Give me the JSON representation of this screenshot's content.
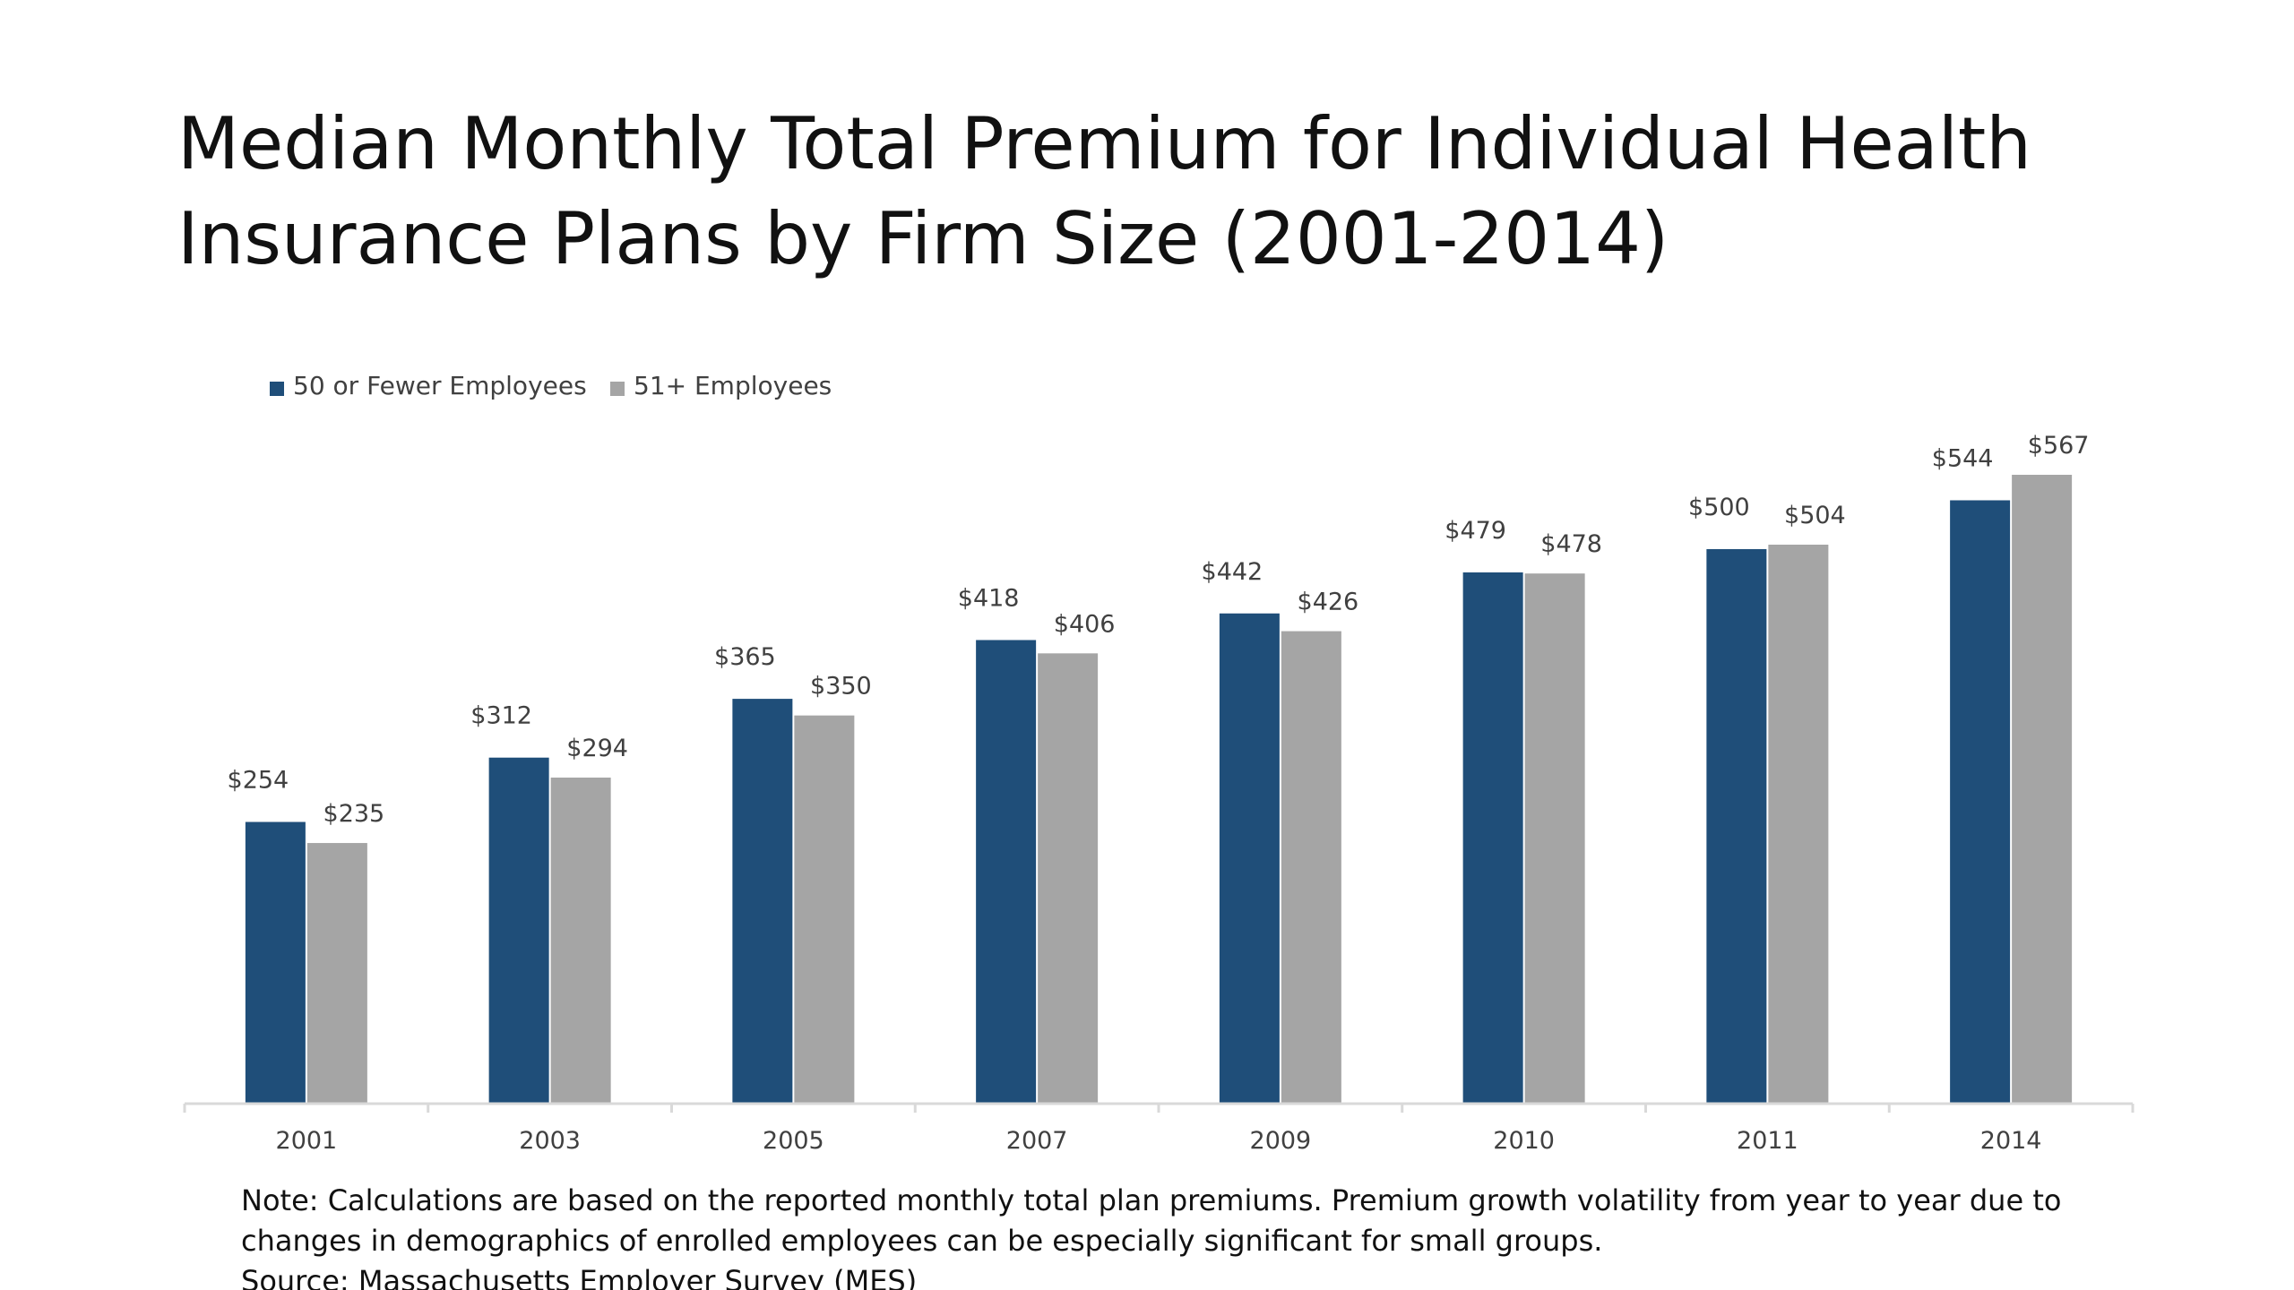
{
  "title_lines": [
    "Median Monthly Total Premium for Individual Health",
    "Insurance Plans by Firm Size (2001-2014)"
  ],
  "colors": {
    "series_small": "#1f4e79",
    "series_large": "#a5a5a5",
    "axis": "#d9d9d9",
    "text": "#111111",
    "label_text": "#404040"
  },
  "notes": {
    "line1": "Note: Calculations are based on the reported monthly total plan premiums.  Premium growth volatility from year to year due to",
    "line2": "changes in demographics of enrolled employees can be especially significant for small groups.",
    "source": "Source: Massachusetts Employer Survey (MES)"
  },
  "chart_data": {
    "type": "bar",
    "title": "Median Monthly Total Premium for Individual Health Insurance Plans by Firm Size (2001-2014)",
    "categories": [
      "2001",
      "2003",
      "2005",
      "2007",
      "2009",
      "2010",
      "2011",
      "2014"
    ],
    "series": [
      {
        "name": "50 or Fewer Employees",
        "values": [
          254,
          312,
          365,
          418,
          442,
          479,
          500,
          544
        ],
        "labels": [
          "$254",
          "$312",
          "$365",
          "$418",
          "$442",
          "$479",
          "$500",
          "$544"
        ],
        "color": "#1f4e79"
      },
      {
        "name": "51+ Employees",
        "values": [
          235,
          294,
          350,
          406,
          426,
          478,
          504,
          567
        ],
        "labels": [
          "$235",
          "$294",
          "$350",
          "$406",
          "$426",
          "$478",
          "$504",
          "$567"
        ],
        "color": "#a5a5a5"
      }
    ],
    "ylim": [
      0,
      567
    ],
    "grid": false,
    "legend_position": "top-left",
    "xlabel": "",
    "ylabel": ""
  }
}
